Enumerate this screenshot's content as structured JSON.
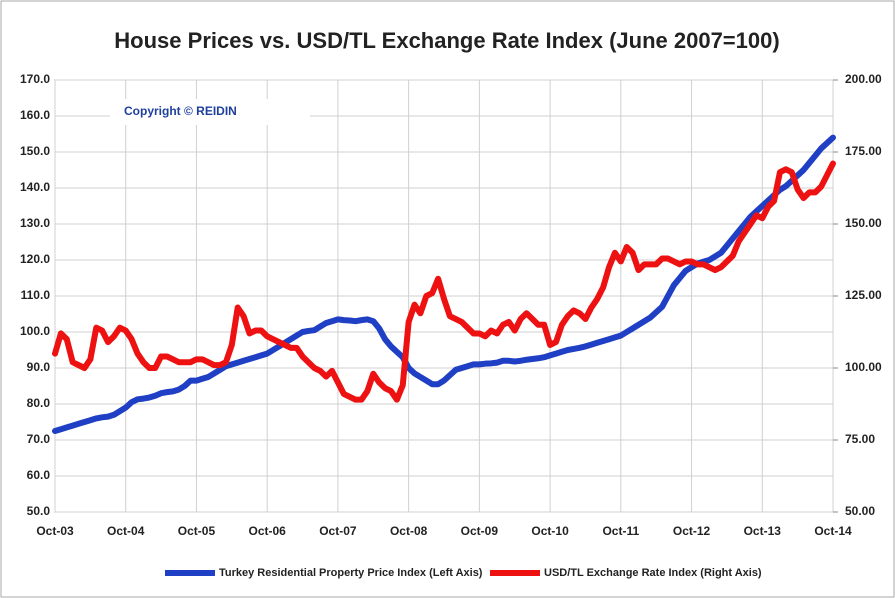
{
  "chart_data": {
    "type": "line",
    "title": "House Prices vs. USD/TL Exchange Rate Index (June 2007=100)",
    "annotation": "Copyright © REIDIN",
    "categories": [
      "Oct-03",
      null,
      null,
      null,
      null,
      null,
      null,
      null,
      null,
      null,
      null,
      null,
      "Oct-04",
      null,
      null,
      null,
      null,
      null,
      null,
      null,
      null,
      null,
      null,
      null,
      "Oct-05",
      null,
      null,
      null,
      null,
      null,
      null,
      null,
      null,
      null,
      null,
      null,
      "Oct-06",
      null,
      null,
      null,
      null,
      null,
      null,
      null,
      null,
      null,
      null,
      null,
      "Oct-07",
      null,
      null,
      null,
      null,
      null,
      null,
      null,
      null,
      null,
      null,
      null,
      "Oct-08",
      null,
      null,
      null,
      null,
      null,
      null,
      null,
      null,
      null,
      null,
      null,
      "Oct-09",
      null,
      null,
      null,
      null,
      null,
      null,
      null,
      null,
      null,
      null,
      null,
      "Oct-10",
      null,
      null,
      null,
      null,
      null,
      null,
      null,
      null,
      null,
      null,
      null,
      "Oct-11",
      null,
      null,
      null,
      null,
      null,
      null,
      null,
      null,
      null,
      null,
      null,
      "Oct-12",
      null,
      null,
      null,
      null,
      null,
      null,
      null,
      null,
      null,
      null,
      null,
      "Oct-13",
      null,
      null,
      null,
      null,
      null,
      null,
      null,
      null,
      null,
      null,
      null,
      "Oct-14"
    ],
    "series": [
      {
        "name": "Turkey Residential Property Price Index (Left Axis)",
        "color": "#1f3fc4",
        "axis": "y",
        "values": [
          72.5,
          73,
          73.5,
          74,
          74.5,
          75,
          75.5,
          76,
          76.3,
          76.5,
          77,
          78,
          79,
          80.5,
          81.3,
          81.5,
          81.8,
          82.3,
          83,
          83.3,
          83.5,
          84,
          85,
          86.5,
          86.5,
          87,
          87.5,
          88.5,
          89.5,
          90.5,
          91,
          91.5,
          92,
          92.5,
          93,
          93.5,
          94,
          95,
          96,
          97,
          98,
          99,
          100,
          100.3,
          100.5,
          101.5,
          102.5,
          103,
          103.5,
          103.3,
          103.2,
          103,
          103.3,
          103.5,
          103,
          101,
          98,
          96,
          94.5,
          93,
          90,
          88.5,
          87.5,
          86.5,
          85.5,
          85.5,
          86.5,
          88,
          89.5,
          90,
          90.5,
          91,
          91,
          91.2,
          91.3,
          91.5,
          92,
          92,
          91.8,
          92,
          92.3,
          92.5,
          92.7,
          93,
          93.5,
          94,
          94.5,
          95,
          95.3,
          95.6,
          96,
          96.5,
          97,
          97.5,
          98,
          98.5,
          99,
          100,
          101,
          102,
          103,
          104,
          105.5,
          107,
          110,
          113,
          115,
          117,
          118,
          119,
          119.5,
          120,
          121,
          122,
          124,
          126,
          128,
          130,
          132,
          133.5,
          135,
          136.5,
          138,
          139.5,
          140.5,
          142,
          143.5,
          145,
          147,
          149,
          151,
          152.5,
          154
        ]
      },
      {
        "name": "USD/TL Exchange Rate Index (Right Axis)",
        "color": "#ee1111",
        "axis": "y2",
        "values": [
          105,
          112,
          110,
          102,
          101,
          100,
          103,
          114,
          113,
          109,
          111,
          114,
          113,
          110,
          105,
          102,
          100,
          100,
          104,
          104,
          103,
          102,
          102,
          102,
          103,
          103,
          102,
          101,
          101,
          102,
          108,
          121,
          118,
          112,
          113,
          113,
          111,
          110,
          109,
          108,
          107,
          107,
          104,
          102,
          100,
          99,
          97,
          99,
          95,
          91,
          90,
          89,
          89,
          92,
          98,
          95,
          93,
          92,
          89,
          94,
          116,
          122,
          119,
          125,
          126,
          131,
          124,
          118,
          117,
          116,
          114,
          112,
          112,
          111,
          113,
          112,
          115,
          116,
          113,
          117,
          119,
          117,
          115,
          115,
          108,
          109,
          115,
          118,
          120,
          119,
          117,
          121,
          124,
          128,
          135,
          140,
          137,
          142,
          140,
          134,
          136,
          136,
          136,
          138,
          138,
          137,
          136,
          137,
          137,
          136,
          136,
          135,
          134,
          135,
          137,
          139,
          144,
          147,
          150,
          153,
          152,
          156,
          158,
          168,
          169,
          168,
          162,
          159,
          161,
          161,
          163,
          167,
          171
        ]
      }
    ],
    "ylim": [
      50,
      170
    ],
    "yticks": [
      {
        "value": 50,
        "label": "50.0"
      },
      {
        "value": 60,
        "label": "60.0"
      },
      {
        "value": 70,
        "label": "70.0"
      },
      {
        "value": 80,
        "label": "80.0"
      },
      {
        "value": 90,
        "label": "90.0"
      },
      {
        "value": 100,
        "label": "100.0"
      },
      {
        "value": 110,
        "label": "110.0"
      },
      {
        "value": 120,
        "label": "120.0"
      },
      {
        "value": 130,
        "label": "130.0"
      },
      {
        "value": 140,
        "label": "140.0"
      },
      {
        "value": 150,
        "label": "150.0"
      },
      {
        "value": 160,
        "label": "160.0"
      },
      {
        "value": 170,
        "label": "170.0"
      }
    ],
    "y2lim": [
      50,
      200
    ],
    "y2ticks": [
      {
        "value": 50,
        "label": "50.00"
      },
      {
        "value": 75,
        "label": "75.00"
      },
      {
        "value": 100,
        "label": "100.00"
      },
      {
        "value": 125,
        "label": "125.00"
      },
      {
        "value": 150,
        "label": "150.00"
      },
      {
        "value": 175,
        "label": "175.00"
      },
      {
        "value": 200,
        "label": "200.00"
      }
    ],
    "grid": true,
    "legend": "bottom"
  }
}
